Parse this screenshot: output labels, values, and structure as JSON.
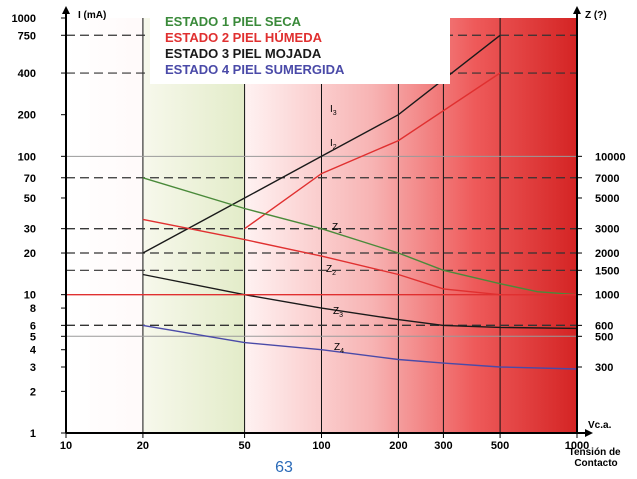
{
  "chart_data": {
    "type": "line",
    "title": "",
    "xlabel": "Tensión de Contacto",
    "x_unit": "Vc.a.",
    "ylabel_left": "I (mA)",
    "ylabel_right": "Z (?)",
    "x_scale": "log",
    "y_scale": "log",
    "xlim": [
      10,
      1000
    ],
    "ylim": [
      1,
      1000
    ],
    "x_ticks": [
      10,
      20,
      50,
      100,
      200,
      300,
      500,
      1000
    ],
    "y_ticks_left": [
      1000,
      750,
      400,
      200,
      100,
      70,
      50,
      30,
      20,
      10,
      8,
      6,
      5,
      4,
      3,
      2,
      1
    ],
    "y_ticks_right": [
      10000,
      7000,
      5000,
      3000,
      2000,
      1500,
      1000,
      600,
      500,
      300
    ],
    "legend": [
      {
        "label": "ESTADO 1  PIEL SECA",
        "color": "#3a8a3a"
      },
      {
        "label": "ESTADO 2  PIEL HÚMEDA",
        "color": "#e03030"
      },
      {
        "label": "ESTADO 3  PIEL MOJADA",
        "color": "#1a1a1a"
      },
      {
        "label": "ESTADO 4  PIEL SUMERGIDA",
        "color": "#4a4aa8"
      }
    ],
    "series": [
      {
        "name": "I3",
        "color": "#1a1a1a",
        "x": [
          20,
          50,
          100,
          200,
          500
        ],
        "y": [
          20,
          50,
          100,
          200,
          750
        ]
      },
      {
        "name": "I2",
        "color": "#e03030",
        "x": [
          50,
          100,
          200,
          500
        ],
        "y": [
          30,
          75,
          130,
          400
        ]
      },
      {
        "name": "Z1",
        "color": "#4a8a3a",
        "x": [
          20,
          50,
          100,
          200,
          300,
          500,
          700,
          1000
        ],
        "y": [
          70,
          42,
          30,
          20,
          15,
          12,
          10.5,
          10
        ]
      },
      {
        "name": "Z2",
        "color": "#e03030",
        "x": [
          20,
          50,
          100,
          200,
          300,
          500,
          1000
        ],
        "y": [
          35,
          25,
          19,
          14,
          11,
          10,
          10
        ]
      },
      {
        "name": "Z3",
        "color": "#1a1a1a",
        "x": [
          20,
          50,
          100,
          200,
          300,
          500,
          1000
        ],
        "y": [
          14,
          10,
          8,
          6.6,
          6,
          5.8,
          5.7
        ]
      },
      {
        "name": "Z4",
        "color": "#4a4aa8",
        "x": [
          20,
          50,
          100,
          200,
          300,
          500,
          1000
        ],
        "y": [
          6,
          4.5,
          4,
          3.4,
          3.2,
          3.0,
          2.9
        ]
      },
      {
        "name": "10 mA",
        "color": "#e03030",
        "x": [
          10,
          1000
        ],
        "y": [
          10,
          10
        ]
      }
    ],
    "dashed_levels_left": [
      750,
      400,
      30,
      20,
      6
    ],
    "dashed_levels_right": [
      7000,
      3000,
      1500,
      600
    ],
    "curve_labels": [
      "I3",
      "I2",
      "Z1",
      "Z2",
      "Z3",
      "Z4"
    ],
    "background": "white-to-red gradient increasing with voltage; light green band between 20 and 50 V",
    "grid": true,
    "legend_position": "top"
  },
  "footer": {
    "page_number": "63"
  }
}
